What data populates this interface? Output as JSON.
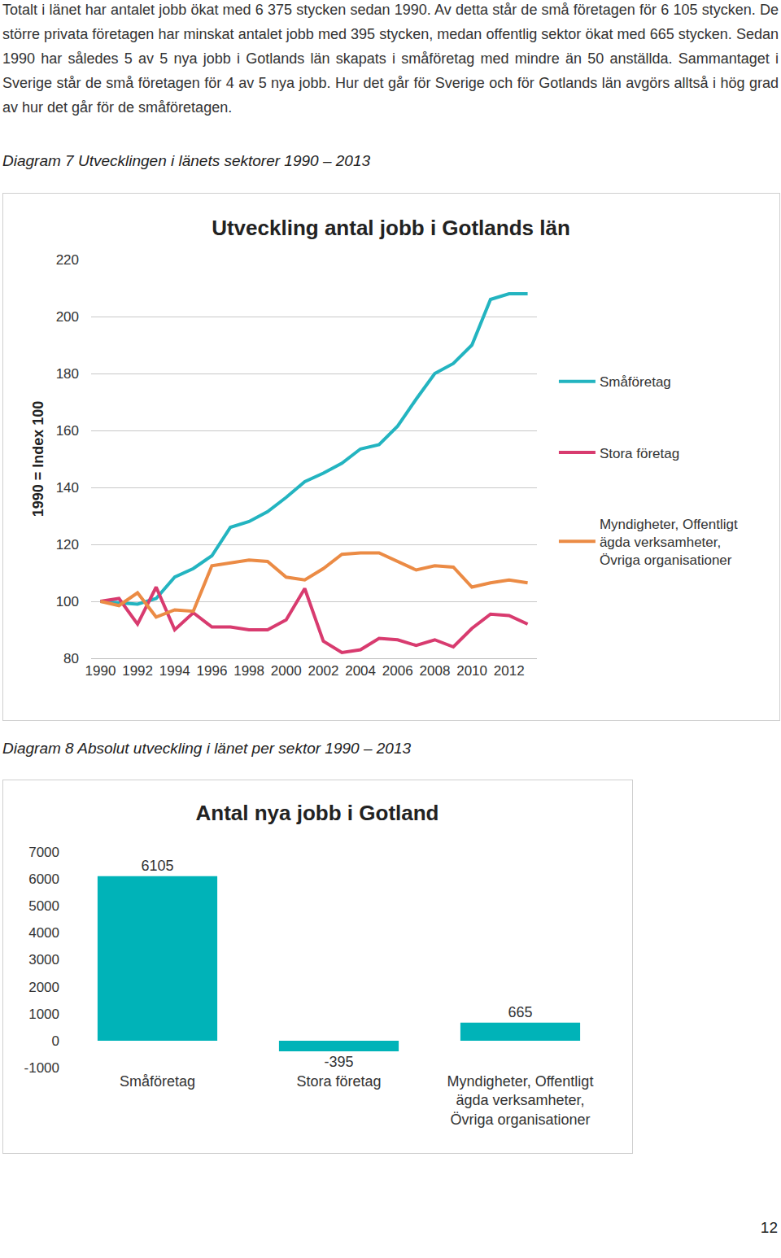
{
  "document": {
    "paragraph": "Totalt i länet har antalet jobb ökat med 6 375 stycken sedan 1990. Av detta står de små företagen för 6 105 stycken. De större privata företagen har minskat antalet jobb med 395 stycken, medan offentlig sektor ökat med 665 stycken. Sedan 1990 har således 5 av 5 nya jobb i Gotlands län skapats i småföretag med mindre än 50 anställda. Sammantaget i Sverige står de små företagen för 4 av 5 nya jobb. Hur det går för Sverige och för Gotlands län avgörs alltså i hög grad av hur det går för de småföretagen.",
    "caption_7": "Diagram 7 Utvecklingen i länets sektorer 1990 – 2013",
    "caption_8": "Diagram 8 Absolut utveckling i länet per sektor 1990 – 2013",
    "page_number": "12"
  },
  "chart_data": [
    {
      "type": "line",
      "title": "Utveckling antal jobb i Gotlands län",
      "y_label": "1990 = Index 100",
      "x": [
        1990,
        1991,
        1992,
        1993,
        1994,
        1995,
        1996,
        1997,
        1998,
        1999,
        2000,
        2001,
        2002,
        2003,
        2004,
        2005,
        2006,
        2007,
        2008,
        2009,
        2010,
        2011,
        2012,
        2013
      ],
      "series": [
        {
          "name": "Småföretag",
          "color": "#23b4c0",
          "values": [
            100,
            99.5,
            99,
            101,
            108.5,
            111.5,
            116,
            126,
            128,
            131.5,
            136.5,
            142,
            145,
            148.5,
            153.5,
            155,
            161.5,
            171,
            180,
            183.5,
            190,
            206,
            208,
            208
          ]
        },
        {
          "name": "Stora företag",
          "color": "#d83b6f",
          "values": [
            100,
            101,
            92,
            105,
            90,
            96,
            91,
            91,
            90,
            90,
            93.5,
            104.5,
            86,
            82,
            83,
            87,
            86.5,
            84.5,
            86.5,
            84,
            90.5,
            95.5,
            95,
            92
          ]
        },
        {
          "name": "Myndigheter, Offentligt ägda verksamheter, Övriga organisationer",
          "color": "#eb8b45",
          "values": [
            100,
            98.5,
            103,
            94.5,
            97,
            96.5,
            112.5,
            113.5,
            114.5,
            114,
            108.5,
            107.5,
            111.5,
            116.5,
            117,
            117,
            114,
            111,
            112.5,
            112,
            105,
            106.5,
            107.5,
            106.5
          ]
        }
      ],
      "xlim": [
        1989.5,
        2013.5
      ],
      "xticks": [
        1990,
        1992,
        1994,
        1996,
        1998,
        2000,
        2002,
        2004,
        2006,
        2008,
        2010,
        2012
      ],
      "ylim": [
        80,
        220
      ],
      "yticks": [
        80,
        100,
        120,
        140,
        160,
        180,
        200,
        220
      ],
      "grid": true,
      "legend": "right"
    },
    {
      "type": "bar",
      "title": "Antal nya jobb i Gotland",
      "categories": [
        "Småföretag",
        "Stora företag",
        "Myndigheter, Offentligt ägda verksamheter, Övriga organisationer"
      ],
      "values": [
        6105,
        -395,
        665
      ],
      "color": "#00b3b8",
      "ylim": [
        -1000,
        7000
      ],
      "yticks": [
        -1000,
        0,
        1000,
        2000,
        3000,
        4000,
        5000,
        6000,
        7000
      ],
      "data_labels": true,
      "grid": false
    }
  ]
}
